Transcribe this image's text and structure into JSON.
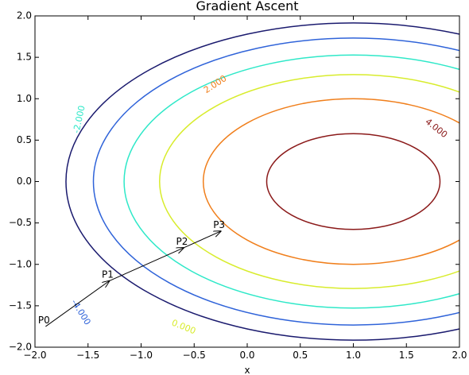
{
  "chart_data": {
    "type": "contour",
    "title": "Gradient Ascent",
    "xlabel": "x",
    "ylabel": "",
    "xlim": [
      -2.0,
      2.0
    ],
    "ylim": [
      -2.0,
      2.0
    ],
    "grid": false,
    "x_ticks": [
      -2.0,
      -1.5,
      -1.0,
      -0.5,
      0.0,
      0.5,
      1.0,
      1.5,
      2.0
    ],
    "y_ticks": [
      -2.0,
      -1.5,
      -1.0,
      -0.5,
      0.0,
      0.5,
      1.0,
      1.5,
      2.0
    ],
    "x_tick_labels": [
      "−2.0",
      "−1.5",
      "−1.0",
      "−0.5",
      "0.0",
      "0.5",
      "1.0",
      "1.5",
      "2.0"
    ],
    "y_tick_labels": [
      "−2.0",
      "−1.5",
      "−1.0",
      "−0.5",
      "0.0",
      "0.5",
      "1.0",
      "1.5",
      "2.0"
    ],
    "function_center": [
      1.0,
      0.0
    ],
    "contours": [
      {
        "level": -6.0,
        "label": "",
        "color": "#1a1a6e"
      },
      {
        "level": -4.0,
        "label": "-4.000",
        "color": "#2f63d9"
      },
      {
        "level": -2.0,
        "label": "-2.000",
        "color": "#2ee8c8"
      },
      {
        "level": 0.0,
        "label": "0.000",
        "color": "#d8ec2c"
      },
      {
        "level": 2.0,
        "label": "2.000",
        "color": "#f07f1c"
      },
      {
        "level": 4.0,
        "label": "4.000",
        "color": "#8b1a1a"
      }
    ],
    "contour_labels": [
      {
        "level": -4.0,
        "text": "-4.000",
        "x": -1.57,
        "y": -1.58,
        "angle": 58
      },
      {
        "level": -2.0,
        "text": "-2.000",
        "x": -1.58,
        "y": 0.75,
        "angle": -78
      },
      {
        "level": 0.0,
        "text": "0.000",
        "x": -0.6,
        "y": -1.76,
        "angle": 22
      },
      {
        "level": 2.0,
        "text": "2.000",
        "x": -0.3,
        "y": 1.17,
        "angle": -33
      },
      {
        "level": 4.0,
        "text": "4.000",
        "x": 1.78,
        "y": 0.64,
        "angle": 38
      }
    ],
    "points": [
      {
        "label": "P0",
        "x": -1.9,
        "y": -1.75
      },
      {
        "label": "P1",
        "x": -1.3,
        "y": -1.2
      },
      {
        "label": "P2",
        "x": -0.6,
        "y": -0.8
      },
      {
        "label": "P3",
        "x": -0.25,
        "y": -0.6
      }
    ]
  }
}
